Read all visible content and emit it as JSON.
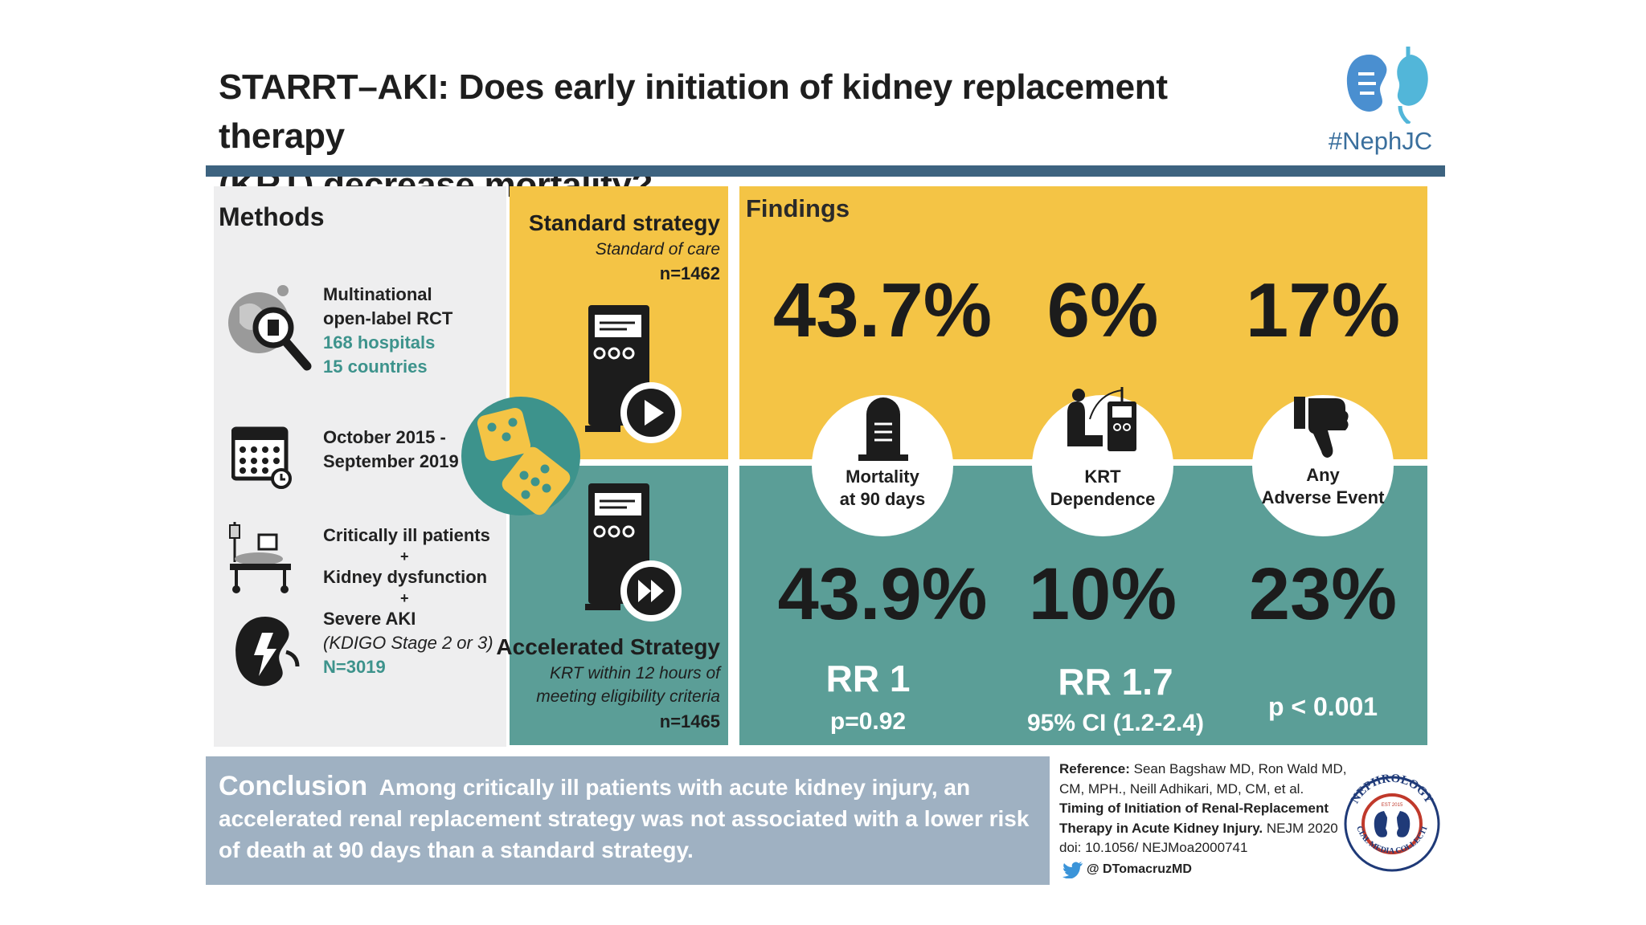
{
  "title_line1": "STARRT–AKI: Does early initiation of kidney replacement therapy",
  "title_line2": "(KRT) decrease mortality?",
  "brand": "#NephJC",
  "methods": {
    "heading": "Methods",
    "design_line1": "Multinational",
    "design_line2": "open-label RCT",
    "hospitals": "168 hospitals",
    "countries": "15 countries",
    "period_line1": "October 2015 -",
    "period_line2": "September 2019",
    "pop_line1": "Critically ill patients",
    "plus": "+",
    "pop_line2": "Kidney dysfunction",
    "pop_line3": "Severe AKI",
    "pop_stage": "(KDIGO Stage 2 or 3)",
    "n_total": "N=3019"
  },
  "standard": {
    "title": "Standard strategy",
    "subtitle": "Standard of care",
    "n": "n=1462"
  },
  "accelerated": {
    "title": "Accelerated Strategy",
    "subtitle_line1": "KRT within 12 hours of",
    "subtitle_line2": "meeting eligibility criteria",
    "n": "n=1465"
  },
  "findings": {
    "heading": "Findings",
    "outcomes": [
      {
        "label_line1": "Mortality",
        "label_line2": "at 90 days",
        "standard": "43.7%",
        "accelerated": "43.9%",
        "stat1": "RR 1",
        "stat2": "p=0.92",
        "icon": "tombstone-icon"
      },
      {
        "label_line1": "KRT",
        "label_line2": "Dependence",
        "standard": "6%",
        "accelerated": "10%",
        "stat1": "RR 1.7",
        "stat2": "95% CI (1.2-2.4)",
        "icon": "dialysis-icon"
      },
      {
        "label_line1": "Any",
        "label_line2": "Adverse Event",
        "standard": "17%",
        "accelerated": "23%",
        "stat1": "",
        "stat2": "p < 0.001",
        "icon": "thumbs-down-icon"
      }
    ]
  },
  "conclusion": {
    "heading": "Conclusion",
    "text": "Among critically ill patients with acute kidney injury, an accelerated renal replacement strategy was not associated with a lower risk of death at 90 days than a standard strategy."
  },
  "reference": {
    "label": "Reference:",
    "authors": "Sean Bagshaw MD, Ron Wald MD, CM, MPH., Neill Adhikari, MD, CM, et al.",
    "article": "Timing of Initiation of Renal-Replacement Therapy in Acute Kidney Injury.",
    "journal": "NEJM 2020",
    "doi": "doi: 10.1056/ NEJMoa2000741",
    "handle": "@ DTomacruzMD"
  },
  "seal": {
    "top": "NEPHROLOGY",
    "bottom": "SOCIAL MEDIA COLLECTIVE",
    "est": "EST 2015"
  },
  "colors": {
    "yellow": "#f4c445",
    "teal": "#5b9e97",
    "navy": "#3d6380",
    "conclusion": "#9fb1c2",
    "accent_teal": "#3d938c"
  }
}
